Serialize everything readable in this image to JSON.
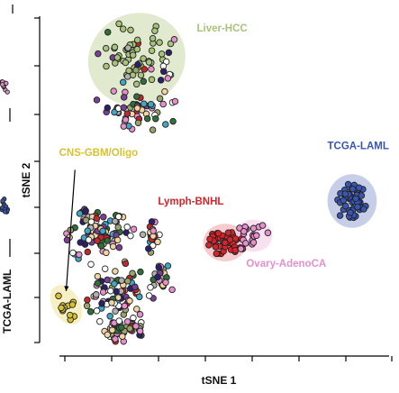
{
  "chart_data": {
    "type": "scatter",
    "xlabel": "tSNE 1",
    "ylabel": "tSNE 2",
    "xlim": [
      0,
      100
    ],
    "ylim": [
      0,
      100
    ],
    "grid": false,
    "legend": "none",
    "colors": {
      "liver": "#a8c47a",
      "cns": "#d8c233",
      "lymph": "#d9232b",
      "ovary": "#e78fcd",
      "laml": "#3a56b3",
      "liver_halo": "#c9d8a6",
      "cns_halo": "#efe394",
      "lymph_halo": "#f2a3a7",
      "ovary_halo": "#f3c7e6",
      "laml_halo": "#97a6d6",
      "mix": [
        "#2e1f6b",
        "#c4282e",
        "#e78fcd",
        "#f2d3a1",
        "#2f6f3a",
        "#3fa7c5",
        "#9aa46a",
        "#b0b0b0",
        "#7a3f97",
        "#ffffff"
      ]
    },
    "annotations": [
      {
        "text": "Liver-HCC",
        "x": 44,
        "y": 93,
        "color": "#a8c47a"
      },
      {
        "text": "CNS-GBM/Oligo",
        "x": 5,
        "y": 57,
        "color": "#d8c233"
      },
      {
        "text": "Lymph-BNHL",
        "x": 33,
        "y": 43,
        "color": "#d9232b"
      },
      {
        "text": "Ovary-AdenoCA",
        "x": 58,
        "y": 25,
        "color": "#e78fcd"
      },
      {
        "text": "TCGA-LAML",
        "x": 81,
        "y": 59,
        "color": "#3a56b3"
      }
    ],
    "clusters": [
      {
        "name": "Liver-HCC",
        "type": "highlight",
        "color": "#a8c47a",
        "cx": 27,
        "cy": 85,
        "rx": 9,
        "ry": 8.5,
        "n": 70,
        "halo": true
      },
      {
        "name": "CNS-GBM/Oligo",
        "type": "highlight",
        "color": "#d8c233",
        "cx": 7,
        "cy": 14,
        "rx": 2.5,
        "ry": 4,
        "n": 14,
        "halo": true
      },
      {
        "name": "Lymph-BNHL",
        "type": "highlight",
        "color": "#d9232b",
        "cx": 52,
        "cy": 32,
        "rx": 4,
        "ry": 3.5,
        "n": 45,
        "halo": true
      },
      {
        "name": "Ovary-AdenoCA",
        "type": "highlight",
        "color": "#e78fcd",
        "cx": 60,
        "cy": 34,
        "rx": 3.5,
        "ry": 3,
        "n": 20,
        "halo": true
      },
      {
        "name": "TCGA-LAML",
        "type": "highlight",
        "color": "#3a56b3",
        "cx": 88,
        "cy": 44,
        "rx": 4.5,
        "ry": 5,
        "n": 55,
        "halo": true
      },
      {
        "name": "",
        "type": "mix",
        "cx": 27,
        "cy": 70,
        "rx": 9,
        "ry": 5,
        "n": 55
      },
      {
        "name": "",
        "type": "mix",
        "cx": 16,
        "cy": 35,
        "rx": 9,
        "ry": 6,
        "n": 95
      },
      {
        "name": "",
        "type": "mix",
        "cx": 31,
        "cy": 34,
        "rx": 3,
        "ry": 4,
        "n": 20
      },
      {
        "name": "",
        "type": "mix",
        "cx": 34,
        "cy": 22,
        "rx": 3,
        "ry": 5,
        "n": 25
      },
      {
        "name": "",
        "type": "mix",
        "cx": 22,
        "cy": 17,
        "rx": 7,
        "ry": 8,
        "n": 80
      },
      {
        "name": "",
        "type": "mix",
        "cx": 23,
        "cy": 7,
        "rx": 5,
        "ry": 3,
        "n": 45
      }
    ],
    "arrow": {
      "from": [
        9.5,
        53
      ],
      "to": [
        7,
        18
      ]
    }
  },
  "left_strip": {
    "label": "TCGA-LAML",
    "colors": [
      "#e78fcd",
      "#3a56b3"
    ]
  }
}
